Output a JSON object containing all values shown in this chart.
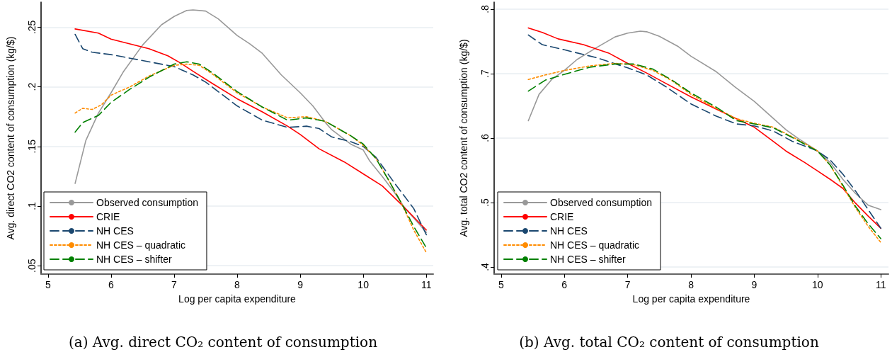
{
  "chart_data": [
    {
      "type": "line",
      "xlabel": "Log per capita expenditure",
      "ylabel": "Avg. direct CO2 content of consumption (kg/$)",
      "annotations": [
        "(a) Avg. direct CO₂ content of consumption"
      ],
      "xlim": [
        4.89,
        11.11
      ],
      "xticks": [
        5,
        6,
        7,
        8,
        9,
        10,
        11
      ],
      "ylim": [
        0.043,
        0.271
      ],
      "yticks": [
        {
          "value": 0.05,
          "label": ".05"
        },
        {
          "value": 0.1,
          "label": ".1"
        },
        {
          "value": 0.15,
          "label": ".15"
        },
        {
          "value": 0.2,
          "label": ".2"
        },
        {
          "value": 0.25,
          "label": ".25"
        }
      ],
      "grid": "y",
      "legend": "bottom left",
      "marker": "none",
      "series": [
        {
          "name": "Observed consumption",
          "color": "#999999",
          "line_style": "solid",
          "x": [
            5.43,
            5.6,
            5.8,
            6.0,
            6.2,
            6.5,
            6.8,
            7.0,
            7.2,
            7.3,
            7.5,
            7.7,
            8.0,
            8.2,
            8.4,
            8.7,
            9.0,
            9.2,
            9.4,
            9.5,
            9.8,
            10.0,
            10.1,
            10.3,
            10.5,
            10.65,
            10.8,
            11.0
          ],
          "values": [
            0.119,
            0.155,
            0.178,
            0.195,
            0.213,
            0.235,
            0.252,
            0.259,
            0.264,
            0.2645,
            0.2635,
            0.257,
            0.243,
            0.236,
            0.228,
            0.21,
            0.195,
            0.184,
            0.17,
            0.164,
            0.152,
            0.147,
            0.138,
            0.125,
            0.111,
            0.099,
            0.09,
            0.078
          ]
        },
        {
          "name": "CRIE",
          "color": "#ff0000",
          "line_style": "solid",
          "x": [
            5.43,
            5.8,
            6.0,
            6.3,
            6.6,
            6.9,
            7.1,
            7.3,
            7.6,
            8.0,
            8.4,
            8.8,
            9.0,
            9.3,
            9.7,
            10.0,
            10.3,
            10.65,
            11.0
          ],
          "values": [
            0.2485,
            0.245,
            0.24,
            0.236,
            0.232,
            0.226,
            0.22,
            0.213,
            0.203,
            0.19,
            0.179,
            0.167,
            0.16,
            0.148,
            0.137,
            0.127,
            0.117,
            0.099,
            0.08
          ]
        },
        {
          "name": "NH CES",
          "color": "#1a476f",
          "line_style": "dashed",
          "x": [
            5.43,
            5.55,
            5.7,
            6.0,
            6.5,
            7.0,
            7.3,
            7.5,
            8.0,
            8.4,
            8.8,
            9.1,
            9.3,
            9.5,
            9.8,
            10.0,
            10.2,
            10.5,
            10.8,
            11.0
          ],
          "values": [
            0.244,
            0.232,
            0.229,
            0.227,
            0.222,
            0.217,
            0.21,
            0.204,
            0.184,
            0.172,
            0.166,
            0.167,
            0.165,
            0.158,
            0.154,
            0.15,
            0.141,
            0.119,
            0.098,
            0.076
          ]
        },
        {
          "name": "NH CES – quadratic",
          "color": "#ff8c00",
          "line_style": "dotted",
          "x": [
            5.43,
            5.55,
            5.7,
            5.85,
            6.0,
            6.3,
            6.6,
            7.0,
            7.2,
            7.4,
            7.6,
            8.0,
            8.4,
            8.8,
            9.1,
            9.4,
            9.8,
            10.0,
            10.2,
            10.4,
            10.6,
            10.8,
            11.0
          ],
          "values": [
            0.178,
            0.182,
            0.181,
            0.185,
            0.193,
            0.2,
            0.209,
            0.218,
            0.219,
            0.218,
            0.211,
            0.195,
            0.183,
            0.174,
            0.175,
            0.171,
            0.159,
            0.151,
            0.14,
            0.122,
            0.103,
            0.08,
            0.061
          ]
        },
        {
          "name": "NH CES – shifter",
          "color": "#008000",
          "line_style": "dashed",
          "x": [
            5.43,
            5.55,
            5.8,
            6.0,
            6.3,
            6.6,
            7.0,
            7.2,
            7.4,
            7.6,
            8.0,
            8.4,
            8.8,
            9.1,
            9.4,
            9.8,
            10.0,
            10.2,
            10.4,
            10.6,
            10.8,
            11.0
          ],
          "values": [
            0.162,
            0.17,
            0.176,
            0.187,
            0.198,
            0.208,
            0.219,
            0.221,
            0.219,
            0.212,
            0.196,
            0.183,
            0.172,
            0.174,
            0.171,
            0.159,
            0.152,
            0.14,
            0.122,
            0.103,
            0.083,
            0.065
          ]
        }
      ]
    },
    {
      "type": "line",
      "xlabel": "Log per capita expenditure",
      "ylabel": "Avg. total CO2 content of consumption (kg/$)",
      "annotations": [
        "(b) Avg. total CO₂ content of consumption"
      ],
      "xlim": [
        4.89,
        11.12
      ],
      "xticks": [
        5,
        6,
        7,
        8,
        9,
        10,
        11
      ],
      "ylim": [
        0.389,
        0.811
      ],
      "yticks": [
        {
          "value": 0.4,
          "label": ".4"
        },
        {
          "value": 0.5,
          "label": ".5"
        },
        {
          "value": 0.6,
          "label": ".6"
        },
        {
          "value": 0.7,
          "label": ".7"
        },
        {
          "value": 0.8,
          "label": ".8"
        }
      ],
      "grid": "y",
      "legend": "bottom left",
      "marker": "none",
      "series": [
        {
          "name": "Observed consumption",
          "color": "#999999",
          "line_style": "solid",
          "x": [
            5.43,
            5.6,
            5.8,
            6.0,
            6.2,
            6.5,
            6.8,
            7.0,
            7.2,
            7.3,
            7.5,
            7.8,
            8.0,
            8.4,
            8.7,
            9.0,
            9.5,
            9.7,
            10.0,
            10.2,
            10.4,
            10.6,
            10.8,
            11.0
          ],
          "values": [
            0.627,
            0.668,
            0.691,
            0.705,
            0.722,
            0.74,
            0.757,
            0.763,
            0.766,
            0.765,
            0.758,
            0.742,
            0.727,
            0.703,
            0.679,
            0.657,
            0.613,
            0.599,
            0.58,
            0.562,
            0.536,
            0.514,
            0.496,
            0.489
          ]
        },
        {
          "name": "CRIE",
          "color": "#ff0000",
          "line_style": "solid",
          "x": [
            5.43,
            5.65,
            5.9,
            6.3,
            6.7,
            7.0,
            7.3,
            7.6,
            8.0,
            8.27,
            8.72,
            9.0,
            9.3,
            9.5,
            9.8,
            10.0,
            10.2,
            10.4,
            10.6,
            10.8,
            11.0
          ],
          "values": [
            0.771,
            0.764,
            0.754,
            0.745,
            0.732,
            0.716,
            0.701,
            0.685,
            0.664,
            0.651,
            0.63,
            0.617,
            0.595,
            0.58,
            0.562,
            0.549,
            0.536,
            0.522,
            0.499,
            0.479,
            0.46
          ]
        },
        {
          "name": "NH CES",
          "color": "#1a476f",
          "line_style": "dashed",
          "x": [
            5.43,
            5.65,
            6.0,
            6.5,
            7.0,
            7.3,
            7.6,
            8.0,
            8.4,
            8.72,
            9.0,
            9.3,
            9.6,
            9.9,
            10.0,
            10.2,
            10.4,
            10.6,
            10.8,
            11.0
          ],
          "values": [
            0.76,
            0.745,
            0.737,
            0.725,
            0.709,
            0.698,
            0.68,
            0.653,
            0.634,
            0.622,
            0.619,
            0.611,
            0.595,
            0.584,
            0.58,
            0.566,
            0.544,
            0.518,
            0.489,
            0.46
          ]
        },
        {
          "name": "NH CES – quadratic",
          "color": "#ff8c00",
          "line_style": "dotted",
          "x": [
            5.43,
            5.7,
            6.0,
            6.4,
            6.8,
            7.1,
            7.4,
            7.7,
            8.0,
            8.4,
            8.72,
            9.0,
            9.3,
            9.6,
            9.9,
            10.0,
            10.2,
            10.4,
            10.6,
            10.8,
            11.0
          ],
          "values": [
            0.691,
            0.698,
            0.705,
            0.712,
            0.716,
            0.714,
            0.705,
            0.689,
            0.668,
            0.646,
            0.63,
            0.623,
            0.617,
            0.602,
            0.586,
            0.58,
            0.558,
            0.525,
            0.492,
            0.463,
            0.438
          ]
        },
        {
          "name": "NH CES – shifter",
          "color": "#008000",
          "line_style": "dashed",
          "x": [
            5.43,
            5.7,
            6.0,
            6.4,
            6.8,
            7.1,
            7.4,
            7.7,
            8.0,
            8.4,
            8.72,
            9.0,
            9.3,
            9.6,
            9.9,
            10.0,
            10.2,
            10.4,
            10.6,
            10.8,
            11.0
          ],
          "values": [
            0.673,
            0.69,
            0.699,
            0.71,
            0.715,
            0.715,
            0.707,
            0.69,
            0.67,
            0.648,
            0.627,
            0.622,
            0.616,
            0.601,
            0.585,
            0.58,
            0.558,
            0.527,
            0.494,
            0.467,
            0.444
          ]
        }
      ]
    }
  ]
}
